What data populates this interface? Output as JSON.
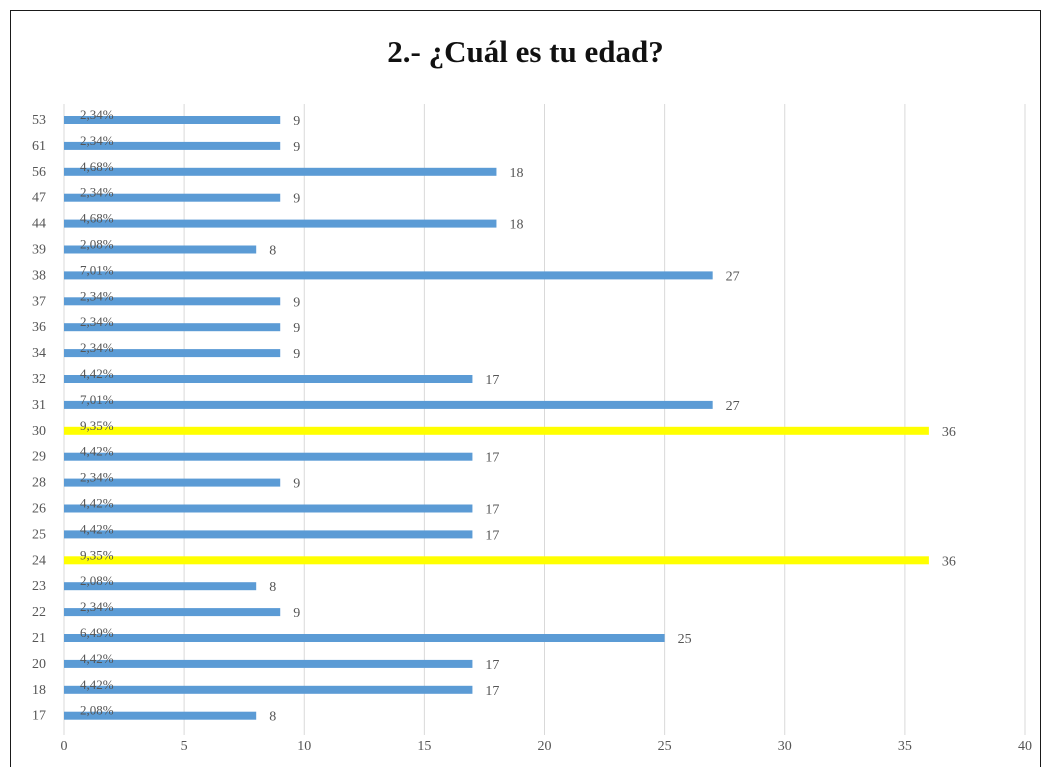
{
  "chart_data": {
    "type": "bar",
    "orientation": "horizontal",
    "title": "2.- ¿Cuál es tu edad?",
    "xlim": [
      0,
      40
    ],
    "x_ticks": [
      "0",
      "5",
      "10",
      "15",
      "20",
      "25",
      "30",
      "35",
      "40"
    ],
    "grid": "vertical",
    "categories": [
      "53",
      "61",
      "56",
      "47",
      "44",
      "39",
      "38",
      "37",
      "36",
      "34",
      "32",
      "31",
      "30",
      "29",
      "28",
      "26",
      "25",
      "24",
      "23",
      "22",
      "21",
      "20",
      "18",
      "17"
    ],
    "values": [
      9,
      9,
      18,
      9,
      18,
      8,
      27,
      9,
      9,
      9,
      17,
      27,
      36,
      17,
      9,
      17,
      17,
      36,
      8,
      9,
      25,
      17,
      17,
      8
    ],
    "percent_labels": [
      "2,34%",
      "2,34%",
      "4,68%",
      "2,34%",
      "4,68%",
      "2,08%",
      "7,01%",
      "2,34%",
      "2,34%",
      "2,34%",
      "4,42%",
      "7,01%",
      "9,35%",
      "4,42%",
      "2,34%",
      "4,42%",
      "4,42%",
      "9,35%",
      "2,08%",
      "2,34%",
      "6,49%",
      "4,42%",
      "4,42%",
      "2,08%"
    ],
    "highlight_categories": [
      "30",
      "24"
    ],
    "colors": {
      "bar": "#5b9bd5",
      "highlight": "#ffff00",
      "grid": "#d9d9d9",
      "text": "#555555"
    }
  }
}
